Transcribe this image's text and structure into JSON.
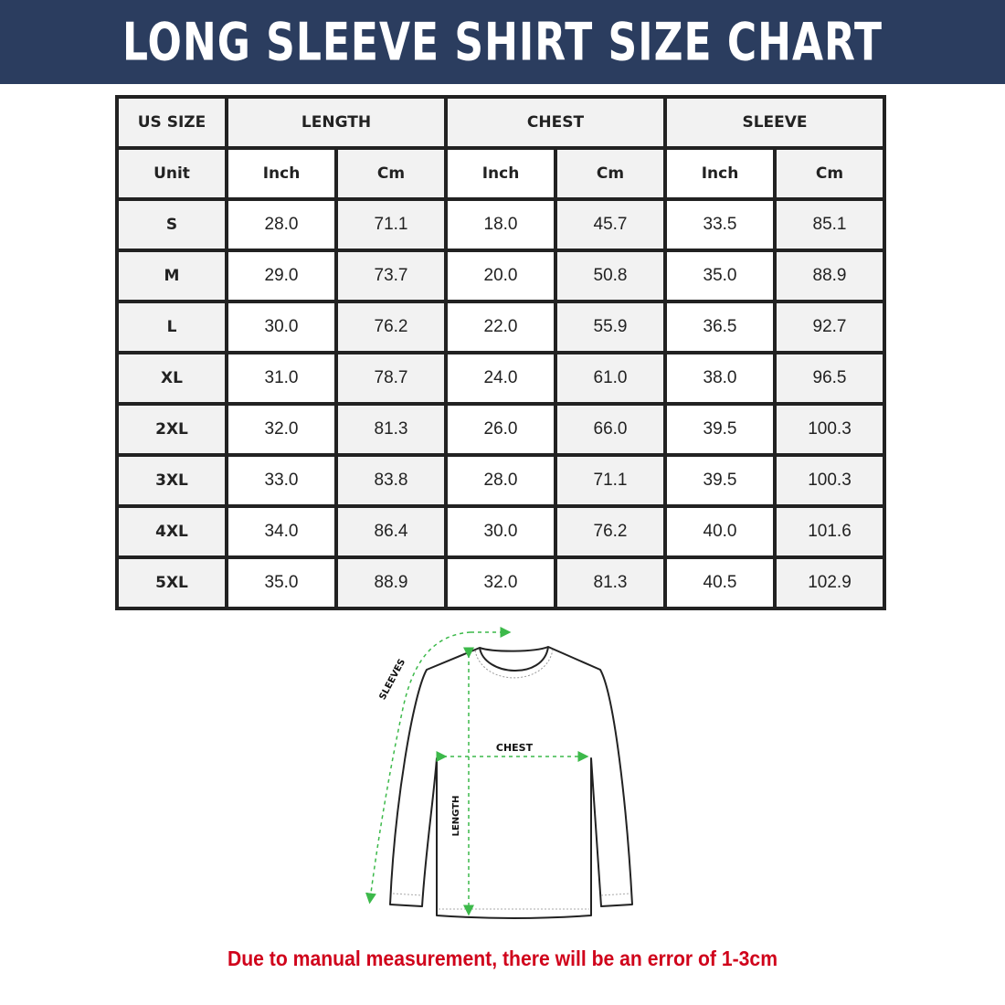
{
  "title": "LONG SLEEVE SHIRT SIZE CHART",
  "colors": {
    "banner": "#2b3d5f",
    "note": "#d0021b",
    "arrows": "#3cb94a"
  },
  "table": {
    "header": {
      "size": "US SIZE",
      "length": "LENGTH",
      "chest": "CHEST",
      "sleeve": "SLEEVE"
    },
    "units": {
      "label": "Unit",
      "inch": "Inch",
      "cm": "Cm"
    },
    "rows": [
      {
        "size": "S",
        "length_in": "28.0",
        "length_cm": "71.1",
        "chest_in": "18.0",
        "chest_cm": "45.7",
        "sleeve_in": "33.5",
        "sleeve_cm": "85.1"
      },
      {
        "size": "M",
        "length_in": "29.0",
        "length_cm": "73.7",
        "chest_in": "20.0",
        "chest_cm": "50.8",
        "sleeve_in": "35.0",
        "sleeve_cm": "88.9"
      },
      {
        "size": "L",
        "length_in": "30.0",
        "length_cm": "76.2",
        "chest_in": "22.0",
        "chest_cm": "55.9",
        "sleeve_in": "36.5",
        "sleeve_cm": "92.7"
      },
      {
        "size": "XL",
        "length_in": "31.0",
        "length_cm": "78.7",
        "chest_in": "24.0",
        "chest_cm": "61.0",
        "sleeve_in": "38.0",
        "sleeve_cm": "96.5"
      },
      {
        "size": "2XL",
        "length_in": "32.0",
        "length_cm": "81.3",
        "chest_in": "26.0",
        "chest_cm": "66.0",
        "sleeve_in": "39.5",
        "sleeve_cm": "100.3"
      },
      {
        "size": "3XL",
        "length_in": "33.0",
        "length_cm": "83.8",
        "chest_in": "28.0",
        "chest_cm": "71.1",
        "sleeve_in": "39.5",
        "sleeve_cm": "100.3"
      },
      {
        "size": "4XL",
        "length_in": "34.0",
        "length_cm": "86.4",
        "chest_in": "30.0",
        "chest_cm": "76.2",
        "sleeve_in": "40.0",
        "sleeve_cm": "101.6"
      },
      {
        "size": "5XL",
        "length_in": "35.0",
        "length_cm": "88.9",
        "chest_in": "32.0",
        "chest_cm": "81.3",
        "sleeve_in": "40.5",
        "sleeve_cm": "102.9"
      }
    ]
  },
  "diagram": {
    "sleeves_label": "SLEEVES",
    "chest_label": "CHEST",
    "length_label": "LENGTH"
  },
  "note": "Due to manual measurement, there will be an error of 1-3cm"
}
